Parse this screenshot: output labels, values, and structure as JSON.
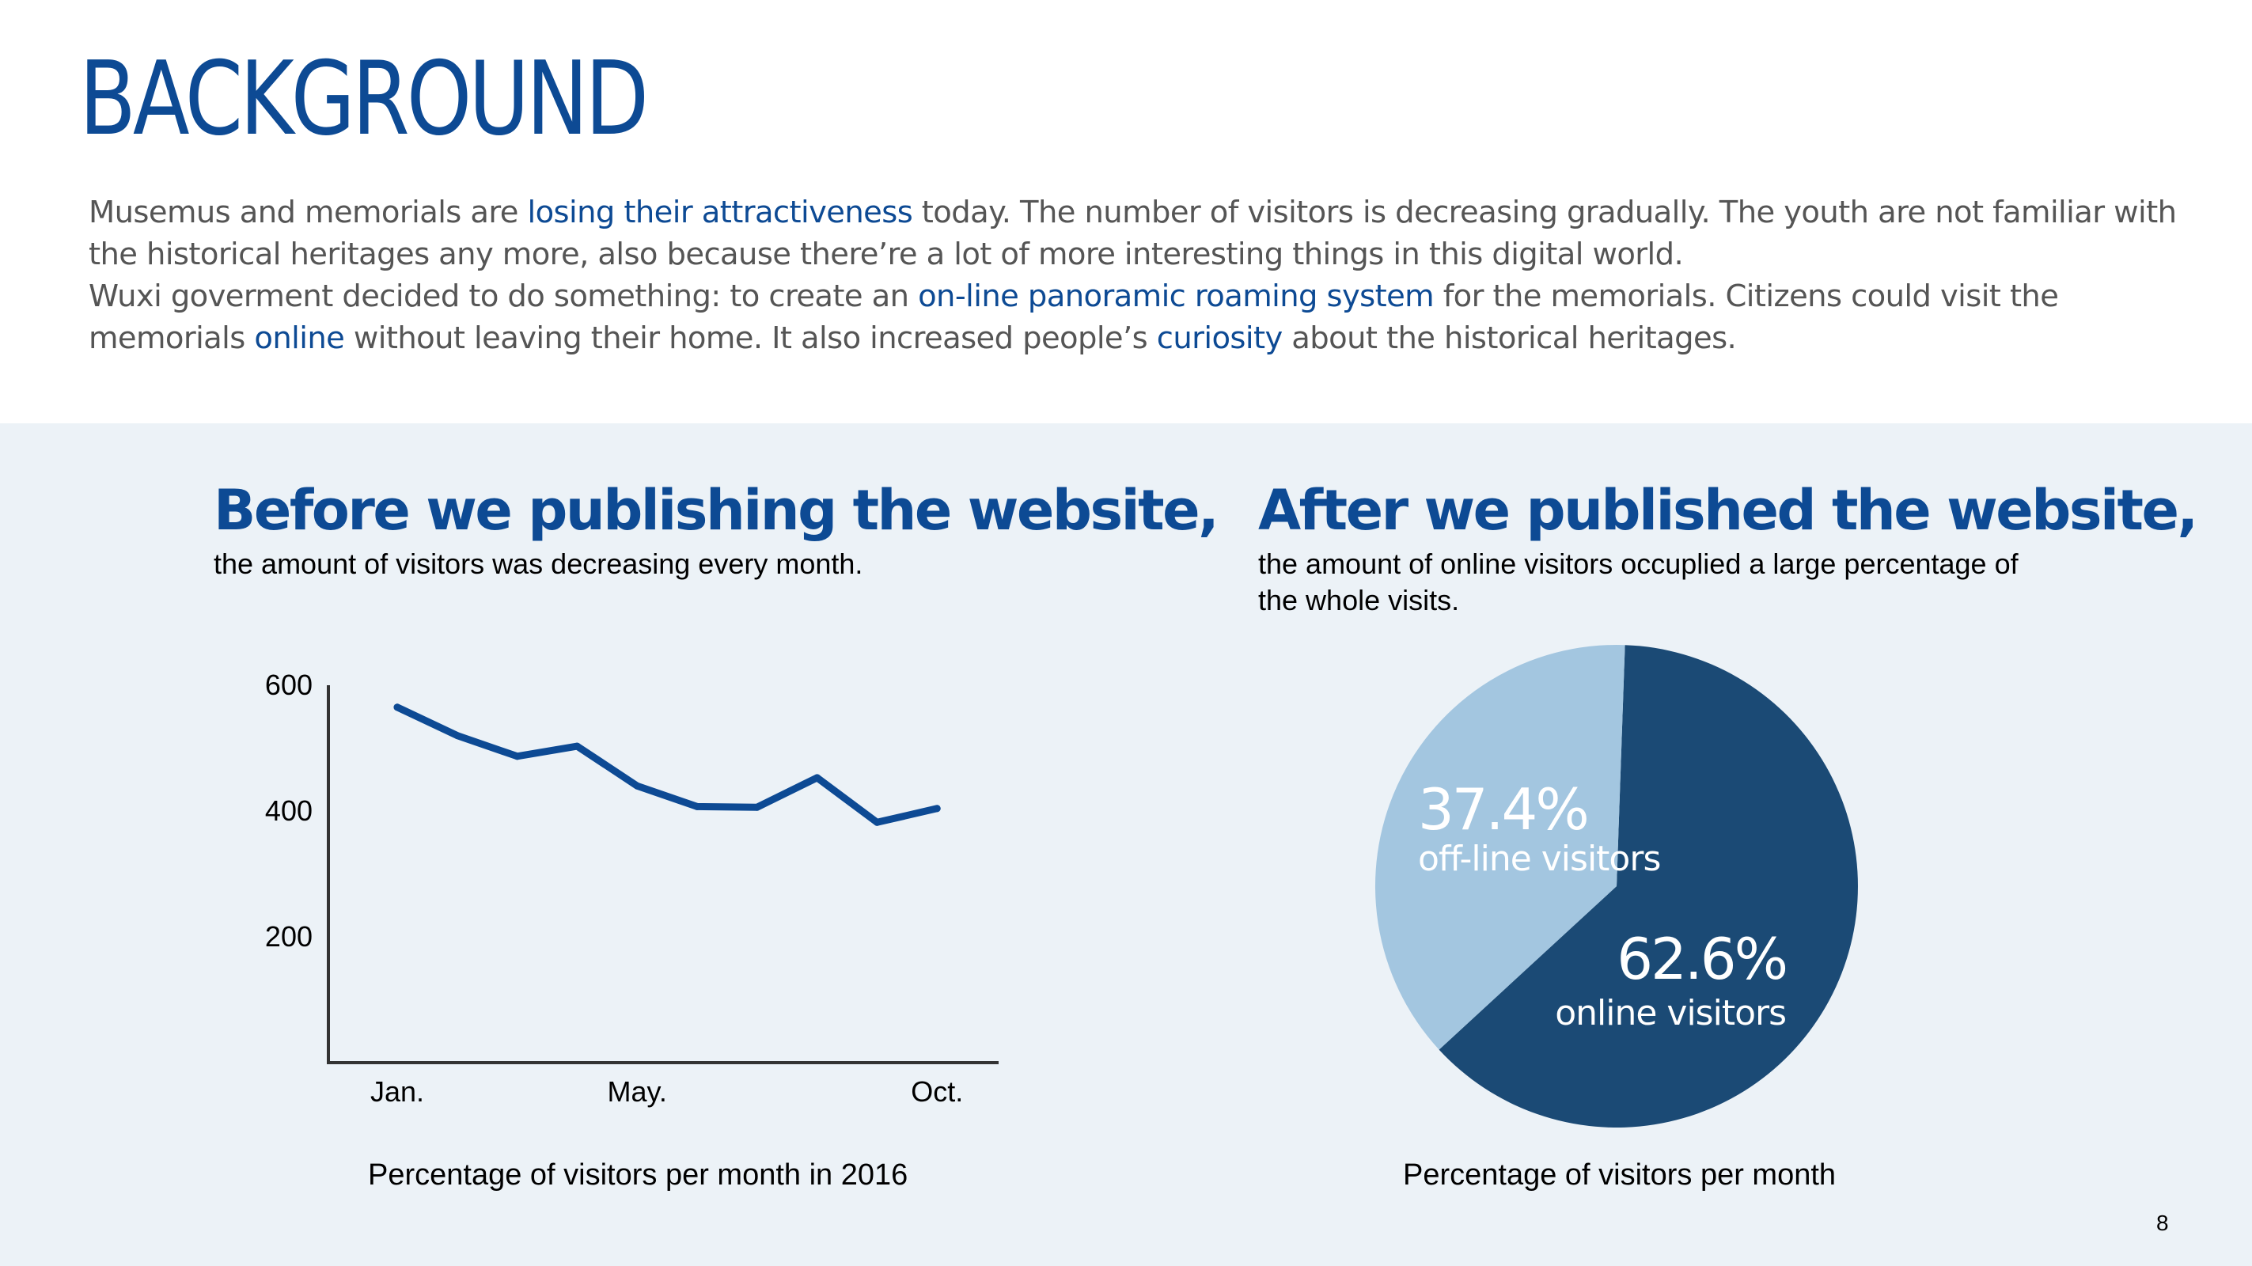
{
  "title": "BACKGROUND",
  "intro": {
    "p1": [
      {
        "text": "Musemus and memorials are ",
        "hl": false
      },
      {
        "text": "losing their attractiveness",
        "hl": true
      },
      {
        "text": " today. The number of visitors is decreasing gradually. The youth are not  familiar with the historical heritages any more, also because there’re a lot of more interesting things in this digital world.",
        "hl": false
      }
    ],
    "p2": [
      {
        "text": "Wuxi goverment decided to do something: to create an ",
        "hl": false
      },
      {
        "text": "on-line panoramic roaming system",
        "hl": true
      },
      {
        "text": " for the memorials. Citizens could visit the memorials ",
        "hl": false
      },
      {
        "text": "online",
        "hl": true
      },
      {
        "text": " without leaving their home. It also increased people’s ",
        "hl": false
      },
      {
        "text": "curiosity",
        "hl": true
      },
      {
        "text": " about the historical heritages.",
        "hl": false
      }
    ]
  },
  "left": {
    "heading": "Before we publishing the website,",
    "subtitle": "the amount of visitors was decreasing every month.",
    "caption": "Percentage of visitors per month in 2016"
  },
  "right": {
    "heading": "After we published the website,",
    "subtitle": "the amount of online visitors occuplied a large percentage of the whole visits.",
    "caption": "Percentage of visitors per month"
  },
  "page_number": "8",
  "colors": {
    "accent": "#0d4a94",
    "line": "#0d4a94",
    "pie_online": "#1b4a75",
    "pie_offline": "#a3c6e0",
    "panel_bg": "#ecf2f7"
  },
  "chart_data": [
    {
      "type": "line",
      "x": [
        1,
        2,
        3,
        4,
        5,
        6,
        7,
        8,
        9,
        10
      ],
      "x_tick_labels": [
        "Jan.",
        "May.",
        "Oct."
      ],
      "x_tick_positions": [
        1,
        5,
        10
      ],
      "y_ticks": [
        200,
        400,
        600
      ],
      "ylim": [
        0,
        600
      ],
      "series": [
        {
          "values": [
            565,
            520,
            487,
            503,
            440,
            407,
            406,
            453,
            382,
            404
          ]
        }
      ],
      "grid": false
    },
    {
      "type": "pie",
      "slices": [
        {
          "label": "online visitors",
          "value": 62.6,
          "display": "62.6%"
        },
        {
          "label": "off-line visitors",
          "value": 37.4,
          "display": "37.4%"
        }
      ]
    }
  ]
}
